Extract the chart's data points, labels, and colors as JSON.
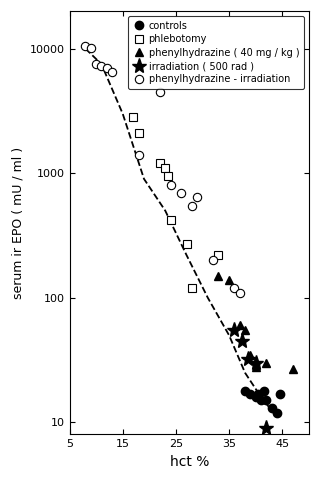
{
  "title": "",
  "xlabel": "hct %",
  "ylabel": "serum ir EPO ( mU / ml )",
  "xlim": [
    5,
    50
  ],
  "ylim_log": [
    8,
    20000
  ],
  "yticks": [
    10,
    100,
    1000,
    10000
  ],
  "xticks": [
    5,
    15,
    25,
    35,
    45
  ],
  "controls": {
    "x": [
      38,
      39,
      40,
      40.5,
      41,
      41.5,
      42,
      43,
      44,
      44.5
    ],
    "y": [
      18,
      17,
      16,
      17,
      15,
      18,
      15,
      13,
      12,
      17
    ],
    "marker": "o",
    "label": "controls",
    "markersize": 6
  },
  "phlebotomy": {
    "x": [
      17,
      18,
      22,
      23,
      23.5,
      24,
      27,
      28,
      33
    ],
    "y": [
      2800,
      2100,
      1200,
      1100,
      950,
      420,
      270,
      120,
      220
    ],
    "marker": "s",
    "label": "phlebotomy",
    "markersize": 6
  },
  "phenylhydrazine": {
    "x": [
      33,
      35,
      37,
      38,
      39,
      40,
      42,
      47
    ],
    "y": [
      150,
      140,
      60,
      55,
      35,
      28,
      30,
      27
    ],
    "marker": "^",
    "label": "phenylhydrazine ( 40 mg / kg )",
    "markersize": 6
  },
  "irradiation": {
    "x": [
      36,
      37.5,
      38.5,
      40,
      42
    ],
    "y": [
      55,
      45,
      32,
      30,
      9
    ],
    "marker": "*",
    "label": "irradiation ( 500 rad )",
    "markersize": 11
  },
  "phenylhydrazine_irradiation": {
    "x": [
      8,
      9,
      10,
      11,
      12,
      13,
      18,
      22,
      24,
      26,
      28,
      29,
      32,
      36,
      37
    ],
    "y": [
      10500,
      10200,
      7500,
      7200,
      7000,
      6500,
      1400,
      4500,
      800,
      700,
      550,
      650,
      200,
      120,
      110
    ],
    "marker": "o",
    "label": "phenylhydrazine - irradiation",
    "markersize": 6
  },
  "dashed_line_x": [
    8,
    11,
    15,
    19,
    23,
    27,
    31,
    35,
    38,
    41,
    44
  ],
  "dashed_line_y": [
    10000,
    7500,
    3000,
    900,
    500,
    220,
    100,
    50,
    25,
    16,
    11
  ],
  "figwidth": 3.2,
  "figheight": 4.8,
  "dpi": 100
}
